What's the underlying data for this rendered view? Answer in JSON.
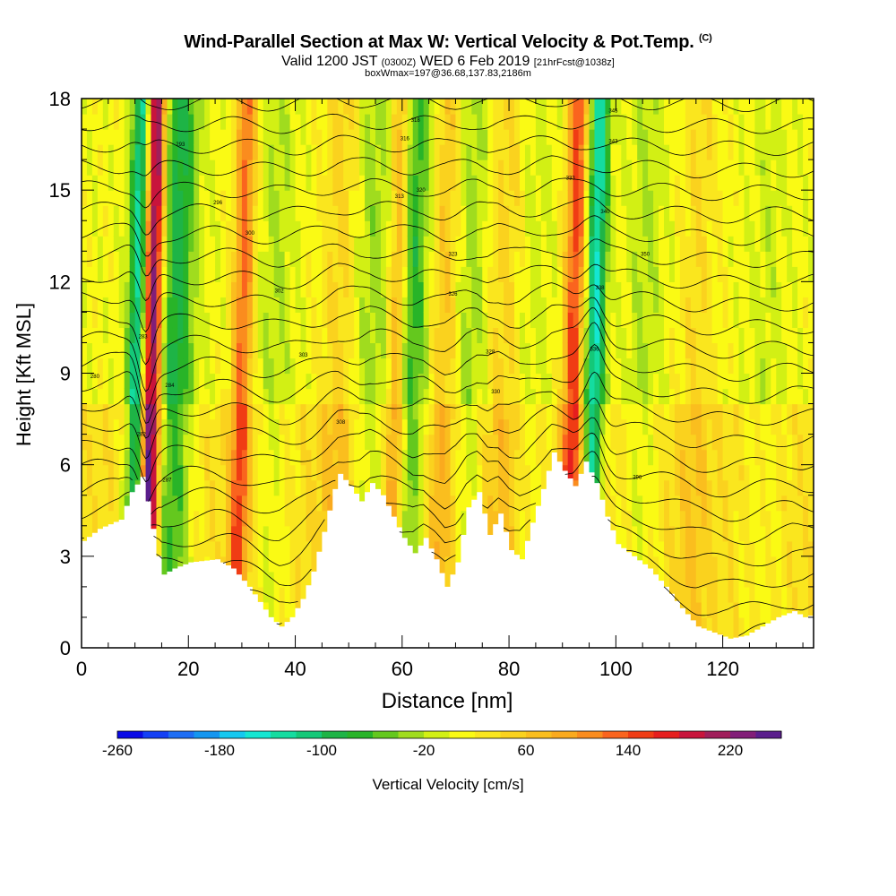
{
  "chart_data": {
    "type": "heatmap",
    "title": "Wind-Parallel Section at Max W: Vertical Velocity & Pot.Temp.",
    "title_mark": "(C)",
    "subtitle_valid": "Valid 1200 JST",
    "subtitle_utc": "(0300Z)",
    "subtitle_date": "WED 6 Feb 2019",
    "subtitle_fcst": "[21hrFcst@1038z]",
    "subtitle2": "boxWmax=197@36.68,137.83,2186m",
    "xlabel": "Distance [nm]",
    "ylabel": "Height [Kft MSL]",
    "xlim": [
      0,
      137
    ],
    "ylim": [
      0,
      18
    ],
    "x_ticks": [
      0,
      20,
      40,
      60,
      80,
      100,
      120
    ],
    "y_ticks": [
      0,
      3,
      6,
      9,
      12,
      15,
      18
    ],
    "colorbar": {
      "label": "Vertical Velocity [cm/s]",
      "range": [
        -260,
        260
      ],
      "step": 20,
      "tick_labels": [
        "-260",
        "-180",
        "-100",
        "-20",
        "60",
        "140",
        "220"
      ],
      "colors": [
        "#0a0ae6",
        "#1440f5",
        "#1e6ef5",
        "#1496f0",
        "#14c8f0",
        "#14e6d2",
        "#14dca0",
        "#14c878",
        "#1eb446",
        "#28b428",
        "#64c81e",
        "#a0dc1e",
        "#d2f014",
        "#fafa14",
        "#fae61e",
        "#fad21e",
        "#fabe1e",
        "#faaa1e",
        "#fa8c1e",
        "#fa641e",
        "#f03c14",
        "#e61e1e",
        "#c8143c",
        "#a01e5a",
        "#821e78",
        "#5a1e8c"
      ]
    },
    "terrain_top_kft": {
      "x": [
        0,
        3,
        7,
        9,
        11,
        12,
        13,
        14,
        15,
        17,
        20,
        25,
        28,
        31,
        33,
        35,
        37,
        39,
        41,
        43,
        45,
        47,
        48,
        50,
        52,
        54,
        56,
        58,
        60,
        62,
        64,
        66,
        68,
        70,
        72,
        74,
        76,
        78,
        80,
        82,
        84,
        86,
        88,
        90,
        92,
        94,
        96,
        98,
        100,
        103,
        106,
        109,
        112,
        115,
        118,
        121,
        124,
        127,
        130,
        133,
        135,
        137
      ],
      "y": [
        3.5,
        3.9,
        4.2,
        5.1,
        5.6,
        4.8,
        3.9,
        3.0,
        2.4,
        2.6,
        2.8,
        2.9,
        2.6,
        2.0,
        1.5,
        1.0,
        0.7,
        1.0,
        1.6,
        2.5,
        3.8,
        5.2,
        5.7,
        5.3,
        4.8,
        5.4,
        5.0,
        4.3,
        3.6,
        3.1,
        3.6,
        2.9,
        2.0,
        2.8,
        4.6,
        5.1,
        3.7,
        4.4,
        3.2,
        2.9,
        4.1,
        5.2,
        6.4,
        5.8,
        5.3,
        6.1,
        5.4,
        4.3,
        3.4,
        3.0,
        2.6,
        2.0,
        1.3,
        0.7,
        0.5,
        0.3,
        0.4,
        0.7,
        1.0,
        1.2,
        1.0,
        1.1
      ]
    },
    "vertical_velocity_features": [
      {
        "x": 13,
        "w": 250
      },
      {
        "x": 10.5,
        "w": -160
      },
      {
        "x": 17.5,
        "w": -100
      },
      {
        "x": 30,
        "w": 120
      },
      {
        "x": 36,
        "w": -30
      },
      {
        "x": 48,
        "w": 40
      },
      {
        "x": 54,
        "w": -40
      },
      {
        "x": 59,
        "w": 110
      },
      {
        "x": 61.5,
        "w": -90
      },
      {
        "x": 68,
        "w": 60
      },
      {
        "x": 72,
        "w": -50
      },
      {
        "x": 79,
        "w": 40
      },
      {
        "x": 84,
        "w": -20
      },
      {
        "x": 92,
        "w": 140
      },
      {
        "x": 96,
        "w": -150
      },
      {
        "x": 105,
        "w": -30
      },
      {
        "x": 115,
        "w": 30
      },
      {
        "x": 128,
        "w": -20
      }
    ],
    "isentropes": {
      "count": 25,
      "labels": [
        {
          "x": 2.5,
          "y": 8.9,
          "text": "280"
        },
        {
          "x": 11.2,
          "y": 7.0,
          "text": "282"
        },
        {
          "x": 11.5,
          "y": 10.2,
          "text": "283"
        },
        {
          "x": 16.5,
          "y": 8.6,
          "text": "284"
        },
        {
          "x": 16.0,
          "y": 5.5,
          "text": "287"
        },
        {
          "x": 18.5,
          "y": 16.5,
          "text": "293"
        },
        {
          "x": 25.5,
          "y": 14.6,
          "text": "296"
        },
        {
          "x": 31.5,
          "y": 13.6,
          "text": "300"
        },
        {
          "x": 37.0,
          "y": 11.7,
          "text": "302"
        },
        {
          "x": 41.5,
          "y": 9.6,
          "text": "303"
        },
        {
          "x": 48.5,
          "y": 7.4,
          "text": "308"
        },
        {
          "x": 59.5,
          "y": 14.8,
          "text": "313"
        },
        {
          "x": 60.5,
          "y": 16.7,
          "text": "316"
        },
        {
          "x": 62.5,
          "y": 17.3,
          "text": "318"
        },
        {
          "x": 63.5,
          "y": 15.0,
          "text": "320"
        },
        {
          "x": 69.5,
          "y": 12.9,
          "text": "323"
        },
        {
          "x": 69.5,
          "y": 11.6,
          "text": "326"
        },
        {
          "x": 76.5,
          "y": 9.7,
          "text": "328"
        },
        {
          "x": 77.5,
          "y": 8.4,
          "text": "330"
        },
        {
          "x": 91.5,
          "y": 15.4,
          "text": "333"
        },
        {
          "x": 96.0,
          "y": 9.8,
          "text": "336"
        },
        {
          "x": 97.0,
          "y": 11.8,
          "text": "338"
        },
        {
          "x": 98.0,
          "y": 14.3,
          "text": "340"
        },
        {
          "x": 99.5,
          "y": 16.6,
          "text": "343"
        },
        {
          "x": 99.5,
          "y": 17.6,
          "text": "345"
        },
        {
          "x": 104.0,
          "y": 5.6,
          "text": "296"
        },
        {
          "x": 105.5,
          "y": 12.9,
          "text": "350"
        }
      ]
    }
  }
}
